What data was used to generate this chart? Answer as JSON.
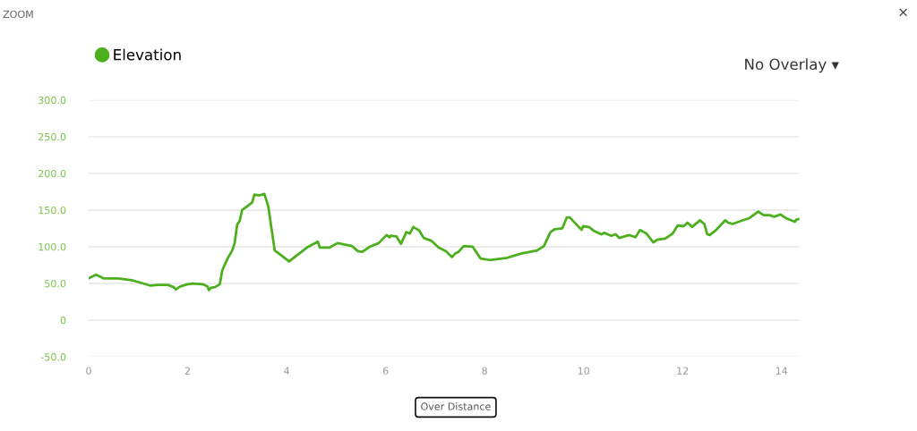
{
  "chart_data": {
    "type": "line",
    "legend": "top left",
    "grid": "y",
    "marker": "none",
    "line_style": "solid",
    "xlim": [
      0,
      14.36
    ],
    "xticks": [
      0,
      2,
      4,
      6,
      8,
      10,
      12,
      14
    ],
    "ylim": [
      -50,
      300
    ],
    "yticks": [
      {
        "value": -50,
        "label": "-50.0"
      },
      0,
      {
        "value": 50,
        "label": "50.0"
      },
      {
        "value": 100,
        "label": "100.0"
      },
      {
        "value": 150,
        "label": "150.0"
      },
      {
        "value": 200,
        "label": "200.0"
      },
      {
        "value": 250,
        "label": "250.0"
      },
      {
        "value": 300,
        "label": "300.0"
      }
    ],
    "annotations": [
      "ZOOM",
      "×",
      "No Overlay ▾",
      "Over Distance"
    ],
    "series": [
      {
        "name": "Elevation",
        "color": "#4caf1e",
        "x": [
          0,
          0.15,
          0.3,
          0.6,
          0.9,
          1.1,
          1.25,
          1.4,
          1.6,
          1.72,
          1.76,
          1.85,
          2.0,
          2.1,
          2.3,
          2.4,
          2.43,
          2.47,
          2.55,
          2.65,
          2.7,
          2.8,
          2.9,
          2.95,
          3.0,
          3.05,
          3.1,
          3.2,
          3.3,
          3.35,
          3.45,
          3.55,
          3.63,
          3.7,
          3.76,
          3.9,
          4.05,
          4.2,
          4.41,
          4.63,
          4.67,
          4.87,
          5.03,
          5.32,
          5.44,
          5.53,
          5.68,
          5.86,
          6.02,
          6.08,
          6.1,
          6.22,
          6.31,
          6.42,
          6.49,
          6.56,
          6.68,
          6.77,
          6.93,
          7.07,
          7.22,
          7.34,
          7.41,
          7.47,
          7.58,
          7.76,
          7.92,
          8.1,
          8.46,
          8.75,
          9.06,
          9.2,
          9.33,
          9.42,
          9.57,
          9.66,
          9.72,
          9.96,
          9.99,
          10.11,
          10.2,
          10.36,
          10.42,
          10.56,
          10.65,
          10.72,
          10.92,
          11.05,
          11.14,
          11.27,
          11.41,
          11.5,
          11.65,
          11.8,
          11.9,
          12.02,
          12.1,
          12.19,
          12.35,
          12.44,
          12.5,
          12.55,
          12.68,
          12.86,
          12.92,
          13.01,
          13.17,
          13.35,
          13.53,
          13.64,
          13.76,
          13.85,
          13.98,
          14.09,
          14.27,
          14.3,
          14.36
        ],
        "values": [
          57,
          62,
          57,
          57,
          54,
          50,
          47,
          48,
          48,
          45,
          42,
          46,
          49,
          50,
          49,
          46,
          41,
          44,
          45,
          49,
          68,
          83,
          95,
          105,
          130,
          135,
          150,
          155,
          160,
          171,
          170,
          172,
          155,
          122,
          95,
          88,
          80,
          88,
          99,
          107,
          99,
          99,
          105,
          101,
          94,
          93,
          100,
          105,
          116,
          113,
          115,
          114,
          104,
          120,
          118,
          127,
          122,
          112,
          108,
          99,
          94,
          86,
          91,
          93,
          101,
          100,
          84,
          82,
          85,
          91,
          95,
          101,
          120,
          124,
          125,
          140,
          140,
          123,
          128,
          127,
          122,
          117,
          119,
          115,
          117,
          112,
          116,
          113,
          123,
          118,
          106,
          110,
          111,
          118,
          129,
          128,
          133,
          127,
          136,
          131,
          117,
          116,
          123,
          136,
          133,
          131,
          135,
          139,
          148,
          143,
          143,
          141,
          144,
          139,
          134,
          137,
          138
        ]
      }
    ]
  }
}
